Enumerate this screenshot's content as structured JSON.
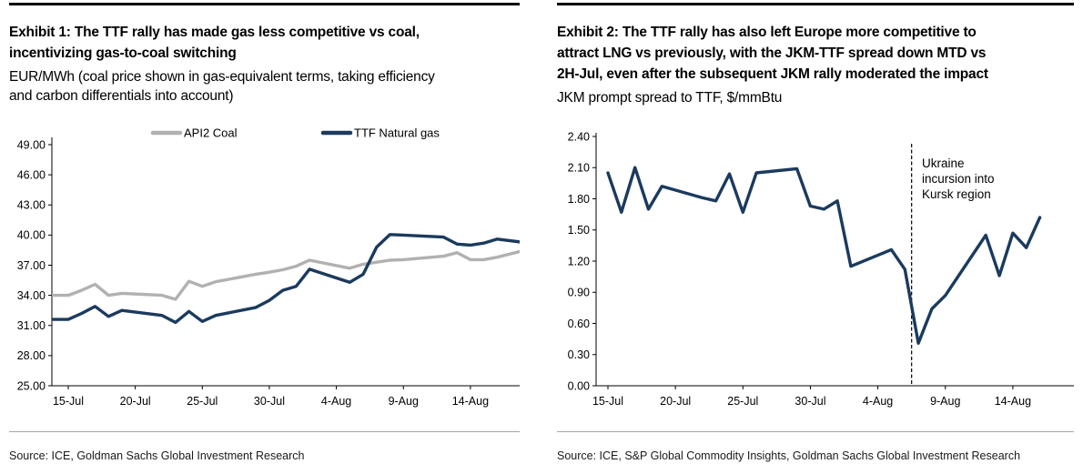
{
  "colors": {
    "navy": "#1b3a5e",
    "gray": "#b1b1b1",
    "rule_top": "#000000",
    "rule_bottom": "#a6a6a6"
  },
  "exhibit1": {
    "title_lines": [
      "Exhibit 1: The TTF rally has made gas less competitive vs coal,",
      "incentivizing gas-to-coal switching"
    ],
    "subtitle_lines": [
      "EUR/MWh (coal price shown in gas-equivalent terms, taking efficiency",
      "and carbon differentials into account)"
    ],
    "source": "Source: ICE, Goldman Sachs Global Investment Research"
  },
  "exhibit2": {
    "title_lines": [
      "Exhibit 2: The TTF rally has also left Europe more competitive to",
      "attract LNG vs previously, with the JKM-TTF spread down MTD vs",
      "2H-Jul, even after the subsequent JKM rally moderated the impact"
    ],
    "subtitle_lines": [
      "JKM prompt spread to TTF, $/mmBtu"
    ],
    "annotation_lines": [
      "Ukraine",
      "incursion into",
      "Kursk region"
    ],
    "source": "Source: ICE, S&P Global Commodity Insights, Goldman Sachs Global Investment Research"
  },
  "chart_data": [
    {
      "type": "line",
      "title": "TTF natural gas vs API2 coal in gas-equivalent terms",
      "ylabel": "EUR/MWh",
      "ylim": [
        25,
        49
      ],
      "y_ticks": [
        25,
        28,
        31,
        34,
        37,
        40,
        43,
        46,
        49
      ],
      "grid": false,
      "legend_position": "top",
      "x_tick_labels": [
        "15-Jul",
        "20-Jul",
        "25-Jul",
        "30-Jul",
        "4-Aug",
        "9-Aug",
        "14-Aug"
      ],
      "x_tick_day_offsets": [
        0,
        5,
        10,
        15,
        20,
        25,
        30
      ],
      "dates": [
        "15-Jul",
        "16-Jul",
        "17-Jul",
        "18-Jul",
        "19-Jul",
        "22-Jul",
        "23-Jul",
        "24-Jul",
        "25-Jul",
        "26-Jul",
        "29-Jul",
        "30-Jul",
        "31-Jul",
        "1-Aug",
        "2-Aug",
        "5-Aug",
        "6-Aug",
        "7-Aug",
        "8-Aug",
        "9-Aug",
        "12-Aug",
        "13-Aug",
        "14-Aug",
        "15-Aug",
        "16-Aug",
        "19-Aug"
      ],
      "day_offsets": [
        0,
        1,
        2,
        3,
        4,
        7,
        8,
        9,
        10,
        11,
        14,
        15,
        16,
        17,
        18,
        21,
        22,
        23,
        24,
        25,
        28,
        29,
        30,
        31,
        32,
        35
      ],
      "series": [
        {
          "name": "API2 Coal",
          "color": "#b1b1b1",
          "values": [
            34.0,
            34.5,
            35.1,
            34.0,
            34.2,
            34.0,
            33.6,
            35.4,
            34.9,
            35.35,
            36.1,
            36.3,
            36.55,
            36.9,
            37.5,
            36.7,
            37.1,
            37.3,
            37.5,
            37.55,
            37.9,
            38.25,
            37.55,
            37.55,
            37.8,
            38.8
          ]
        },
        {
          "name": "TTF Natural gas",
          "color": "#1b3a5e",
          "values": [
            31.6,
            32.2,
            32.9,
            31.9,
            32.5,
            32.0,
            31.3,
            32.4,
            31.4,
            32.0,
            32.8,
            33.5,
            34.5,
            34.9,
            36.6,
            35.3,
            36.1,
            38.8,
            40.05,
            40.0,
            39.8,
            39.1,
            39.0,
            39.2,
            39.6,
            39.1
          ]
        }
      ]
    },
    {
      "type": "line",
      "title": "JKM prompt spread to TTF",
      "ylabel": "$/mmBtu",
      "ylim": [
        0,
        2.4
      ],
      "y_ticks": [
        0,
        0.3,
        0.6,
        0.9,
        1.2,
        1.5,
        1.8,
        2.1,
        2.4
      ],
      "grid": false,
      "x_tick_labels": [
        "15-Jul",
        "20-Jul",
        "25-Jul",
        "30-Jul",
        "4-Aug",
        "9-Aug",
        "14-Aug"
      ],
      "x_tick_day_offsets": [
        0,
        5,
        10,
        15,
        20,
        25,
        30
      ],
      "dates": [
        "15-Jul",
        "16-Jul",
        "17-Jul",
        "18-Jul",
        "19-Jul",
        "22-Jul",
        "23-Jul",
        "24-Jul",
        "25-Jul",
        "26-Jul",
        "29-Jul",
        "30-Jul",
        "31-Jul",
        "1-Aug",
        "2-Aug",
        "5-Aug",
        "6-Aug",
        "7-Aug",
        "8-Aug",
        "9-Aug",
        "12-Aug",
        "13-Aug",
        "14-Aug",
        "15-Aug",
        "16-Aug"
      ],
      "day_offsets": [
        0,
        1,
        2,
        3,
        4,
        7,
        8,
        9,
        10,
        11,
        14,
        15,
        16,
        17,
        18,
        21,
        22,
        23,
        24,
        25,
        28,
        29,
        30,
        31,
        32
      ],
      "series": [
        {
          "name": "JKM-TTF prompt spread",
          "color": "#1b3a5e",
          "values": [
            2.05,
            1.67,
            2.1,
            1.7,
            1.92,
            1.81,
            1.78,
            2.04,
            1.67,
            2.05,
            2.09,
            1.73,
            1.7,
            1.78,
            1.15,
            1.31,
            1.12,
            0.41,
            0.74,
            0.87,
            1.45,
            1.06,
            1.47,
            1.33,
            1.62
          ]
        }
      ],
      "annotation": "Ukraine incursion into Kursk region",
      "event_line_day_offset": 22.5
    }
  ]
}
